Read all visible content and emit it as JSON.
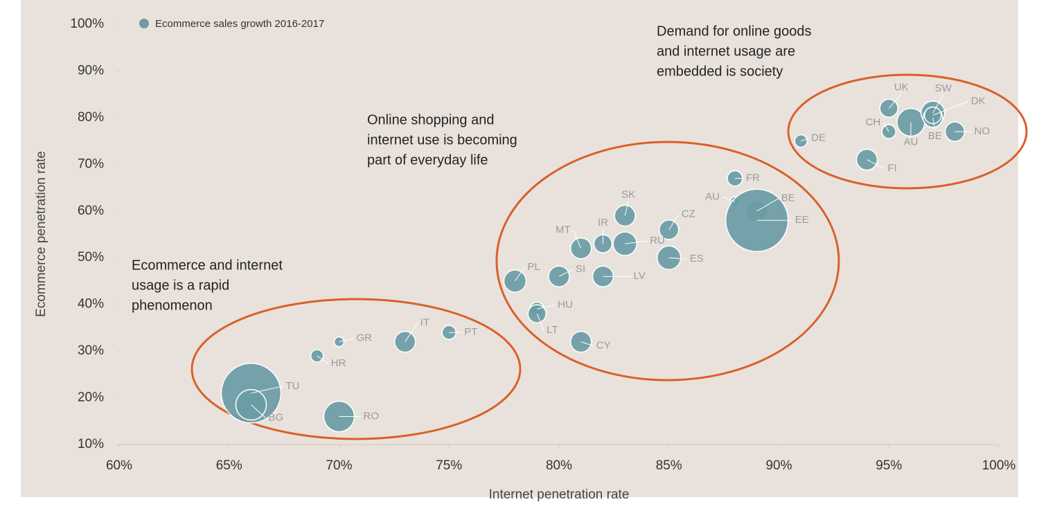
{
  "chart_data": {
    "type": "bubble",
    "xlabel": "Internet penetration rate",
    "ylabel": "Ecommerce penetration rate",
    "xlim": [
      60,
      100
    ],
    "xticks": [
      {
        "value": 60,
        "label": "60%"
      },
      {
        "value": 65,
        "label": "65%"
      },
      {
        "value": 70,
        "label": "70%"
      },
      {
        "value": 75,
        "label": "75%"
      },
      {
        "value": 80,
        "label": "80%"
      },
      {
        "value": 85,
        "label": "85%"
      },
      {
        "value": 90,
        "label": "90%"
      },
      {
        "value": 95,
        "label": "95%"
      },
      {
        "value": 100,
        "label": "100%"
      }
    ],
    "ylim": [
      10,
      100
    ],
    "yticks": [
      {
        "value": 10,
        "label": "10%"
      },
      {
        "value": 20,
        "label": "20%"
      },
      {
        "value": 30,
        "label": "30%"
      },
      {
        "value": 40,
        "label": "40%"
      },
      {
        "value": 50,
        "label": "50%"
      },
      {
        "value": 60,
        "label": "60%"
      },
      {
        "value": 70,
        "label": "70%"
      },
      {
        "value": 80,
        "label": "80%"
      },
      {
        "value": 90,
        "label": "90%"
      },
      {
        "value": 100,
        "label": "100%"
      }
    ],
    "grid": false,
    "legend": "top-left",
    "series": [
      {
        "name": "Ecommerce sales growth 2016-2017",
        "color": "#6a9ca5",
        "labels": [
          "TU",
          "BG",
          "HR",
          "GR",
          "IT",
          "PT",
          "RO",
          "PL",
          "SI",
          "HU",
          "LT",
          "CY",
          "MT",
          "IR",
          "LV",
          "SK",
          "RU",
          "CZ",
          "ES",
          "FR",
          "AU",
          "BE",
          "EE",
          "DE",
          "UK",
          "CH",
          "AU",
          "SW",
          "BE",
          "DK",
          "NO",
          "FI"
        ],
        "x": [
          66,
          66,
          69,
          70,
          73,
          75,
          70,
          78,
          80,
          79,
          79,
          81,
          81,
          82,
          82,
          83,
          83,
          85,
          85,
          88,
          88,
          89,
          89,
          91,
          95,
          95,
          96,
          97,
          97,
          97,
          98,
          94
        ],
        "values": [
          21,
          18.5,
          29,
          32,
          32,
          34,
          16,
          45,
          46,
          39,
          38,
          32,
          52,
          53,
          46,
          59,
          53,
          56,
          50,
          67,
          62,
          60,
          58,
          75,
          82,
          77,
          79,
          81,
          80,
          80.5,
          77,
          71
        ],
        "sizes": [
          43,
          22,
          9,
          7,
          15,
          10,
          22,
          16,
          15,
          10,
          13,
          15,
          15,
          13,
          15,
          15,
          17,
          14,
          17,
          11,
          7,
          16,
          45,
          9,
          13,
          10,
          20,
          17,
          14,
          12,
          14,
          15
        ]
      }
    ],
    "annotations": [
      [
        "Ecommerce and internet",
        "usage is a rapid",
        "phenomenon"
      ],
      [
        "Online shopping and",
        "internet use is becoming",
        "part of everyday life"
      ],
      [
        "Demand for online goods",
        "and internet usage are",
        "embedded is society"
      ]
    ]
  }
}
